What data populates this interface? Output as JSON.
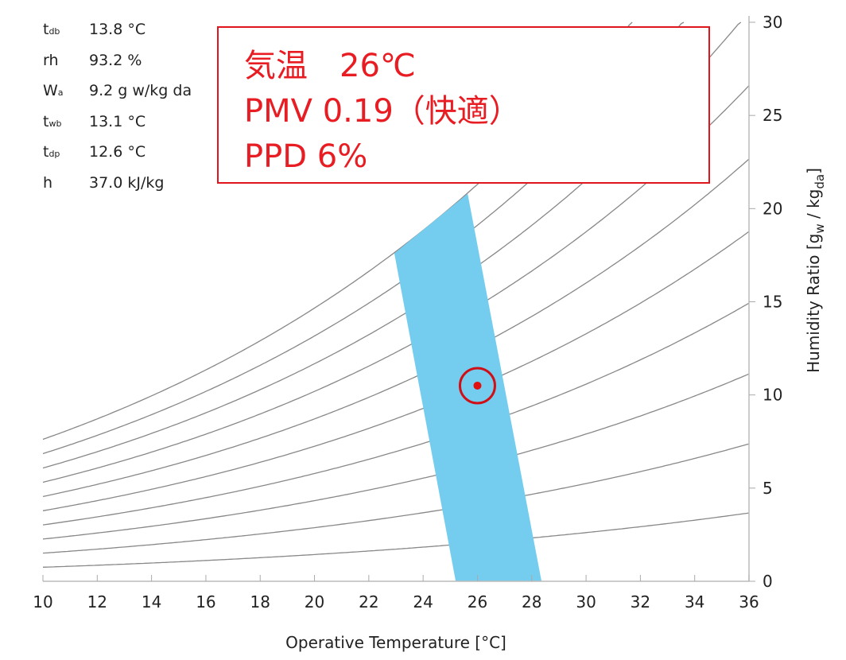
{
  "chart_data": {
    "type": "line",
    "title": "",
    "xlabel": "Operative Temperature [°C]",
    "ylabel": "Humidity Ratio [g_w / kg_da]",
    "xlim": [
      10,
      36
    ],
    "ylim": [
      0,
      30
    ],
    "xticks": [
      "10",
      "12",
      "14",
      "16",
      "18",
      "20",
      "22",
      "24",
      "26",
      "28",
      "30",
      "32",
      "34",
      "36"
    ],
    "yticks": [
      "0",
      "5",
      "10",
      "15",
      "20",
      "25",
      "30"
    ],
    "rh_curves_percent": [
      10,
      20,
      30,
      40,
      50,
      60,
      70,
      80,
      90,
      100
    ],
    "comfort_zone": [
      [
        22.94,
        17.6
      ],
      [
        25.64,
        20.8
      ],
      [
        28.36,
        0
      ],
      [
        25.2,
        0
      ]
    ],
    "point": {
      "x": 26.0,
      "y": 10.5
    },
    "colors": {
      "zone": "#74cdef",
      "curve": "#888888",
      "point": "#e01010"
    }
  },
  "info": [
    {
      "sym": "t",
      "sub": "db",
      "value": "13.8 °C"
    },
    {
      "sym": "rh",
      "sub": "",
      "value": "93.2 %"
    },
    {
      "sym": "W",
      "sub": "a",
      "value": "9.2  g w/kg da"
    },
    {
      "sym": "t",
      "sub": "wb",
      "value": "13.1 °C"
    },
    {
      "sym": "t",
      "sub": "dp",
      "value": "12.6 °C"
    },
    {
      "sym": "h",
      "sub": "",
      "value": "37.0 kJ/kg"
    }
  ],
  "annotation": {
    "line1": "気温　26℃",
    "line2": "PMV 0.19（快適）",
    "line3": "PPD 6%"
  }
}
